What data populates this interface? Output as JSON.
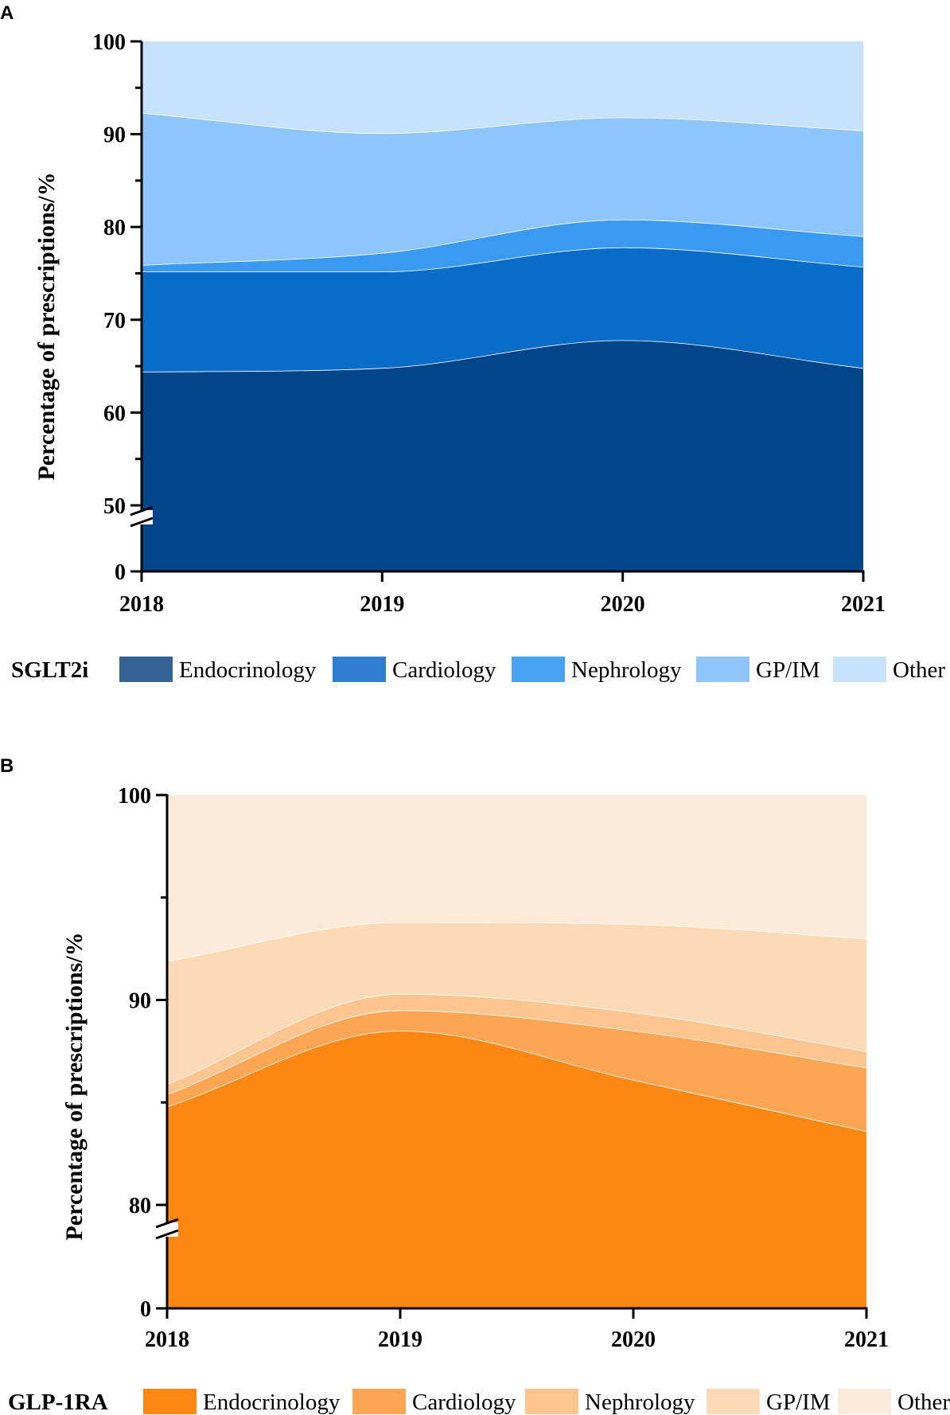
{
  "chart_data": [
    {
      "panel": "A",
      "type": "area",
      "stacked": true,
      "axis_break": true,
      "x": [
        "2018",
        "2019",
        "2020",
        "2021"
      ],
      "ylabel": "Percentage of prescriptions/%",
      "ylim": [
        0,
        100
      ],
      "yticks": [
        "0",
        "50",
        "60",
        "70",
        "80",
        "90",
        "100"
      ],
      "legend_title": "SGLT2i",
      "legend_position": "bottom",
      "series": [
        {
          "name": "Endocrinology",
          "values": [
            64.4,
            64.8,
            67.8,
            64.8
          ],
          "color": "#034589",
          "swatch": "#356295"
        },
        {
          "name": "Cardiology",
          "values": [
            10.8,
            10.4,
            10.0,
            10.9
          ],
          "color": "#0a6cc9",
          "swatch": "#2f7ed2"
        },
        {
          "name": "Nephrology",
          "values": [
            0.7,
            2.0,
            3.0,
            3.3
          ],
          "color": "#3a9af2",
          "swatch": "#48a2f3"
        },
        {
          "name": "GP/IM",
          "values": [
            16.4,
            12.9,
            11.0,
            11.4
          ],
          "color": "#8ec5fc",
          "swatch": "#8ec5fc"
        },
        {
          "name": "Other",
          "values": [
            7.7,
            9.9,
            8.2,
            9.6
          ],
          "color": "#c7e2fd",
          "swatch": "#c7e2fd"
        }
      ]
    },
    {
      "panel": "B",
      "type": "area",
      "stacked": true,
      "axis_break": true,
      "x": [
        "2018",
        "2019",
        "2020",
        "2021"
      ],
      "ylabel": "Percentage of prescriptions/%",
      "ylim": [
        0,
        100
      ],
      "yticks": [
        "0",
        "80",
        "90",
        "100"
      ],
      "legend_title": "GLP-1RA",
      "legend_position": "bottom",
      "series": [
        {
          "name": "Endocrinology",
          "values": [
            84.8,
            88.5,
            86.1,
            83.6
          ],
          "color": "#fc8813",
          "swatch": "#fc8813"
        },
        {
          "name": "Cardiology",
          "values": [
            0.6,
            1.0,
            2.4,
            3.1
          ],
          "color": "#fca553",
          "swatch": "#fca553"
        },
        {
          "name": "Nephrology",
          "values": [
            0.5,
            0.8,
            0.9,
            0.8
          ],
          "color": "#fcc590",
          "swatch": "#fcc590"
        },
        {
          "name": "GP/IM",
          "values": [
            6.0,
            3.5,
            4.3,
            5.5
          ],
          "color": "#fcdab8",
          "swatch": "#fcdab8"
        },
        {
          "name": "Other",
          "values": [
            8.1,
            6.2,
            6.3,
            7.0
          ],
          "color": "#fdebd9",
          "swatch": "#fdebd9"
        }
      ]
    }
  ]
}
